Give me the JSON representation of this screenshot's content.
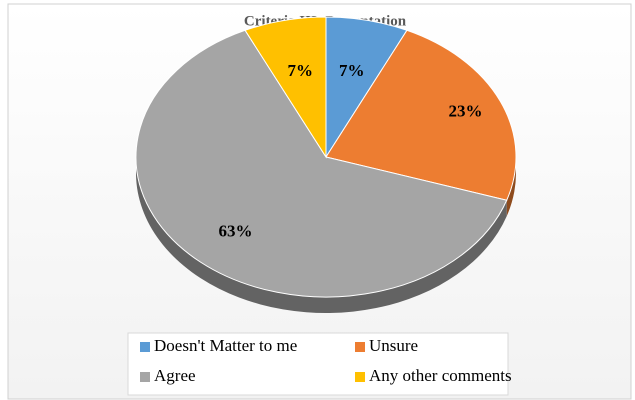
{
  "chart_data": {
    "type": "pie",
    "title": "Criteria III  -Presentation",
    "categories": [
      "Doesn't Matter to me",
      "Unsure",
      "Agree",
      "Any other comments"
    ],
    "values": [
      7,
      23,
      63,
      7
    ],
    "value_labels": [
      "7%",
      "23%",
      "63%",
      "7%"
    ],
    "colors": [
      "#5b9bd5",
      "#ed7d31",
      "#a5a5a5",
      "#ffc000"
    ],
    "legend": "bottom"
  }
}
